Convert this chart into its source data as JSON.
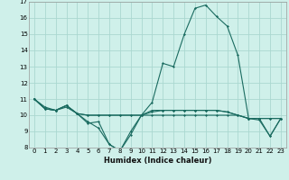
{
  "title": "",
  "xlabel": "Humidex (Indice chaleur)",
  "ylabel": "",
  "bg_color": "#cff0ea",
  "grid_color": "#aad8d0",
  "line_color": "#1a6b60",
  "xlim": [
    -0.5,
    23.5
  ],
  "ylim": [
    8,
    17
  ],
  "xticks": [
    0,
    1,
    2,
    3,
    4,
    5,
    6,
    7,
    8,
    9,
    10,
    11,
    12,
    13,
    14,
    15,
    16,
    17,
    18,
    19,
    20,
    21,
    22,
    23
  ],
  "yticks": [
    8,
    9,
    10,
    11,
    12,
    13,
    14,
    15,
    16,
    17
  ],
  "series": [
    [
      11.0,
      10.5,
      10.3,
      10.5,
      10.1,
      9.6,
      9.2,
      8.2,
      7.8,
      8.8,
      10.0,
      10.8,
      13.2,
      13.0,
      15.0,
      16.6,
      16.8,
      16.1,
      15.5,
      13.7,
      9.8,
      9.7,
      8.7,
      9.8
    ],
    [
      11.0,
      10.4,
      10.3,
      10.6,
      10.1,
      9.5,
      9.6,
      8.2,
      7.8,
      9.0,
      10.0,
      10.3,
      10.3,
      10.3,
      10.3,
      10.3,
      10.3,
      10.3,
      10.2,
      10.0,
      9.8,
      9.8,
      8.7,
      9.8
    ],
    [
      11.0,
      10.4,
      10.3,
      10.6,
      10.1,
      10.0,
      10.0,
      10.0,
      10.0,
      10.0,
      10.0,
      10.2,
      10.3,
      10.3,
      10.3,
      10.3,
      10.3,
      10.3,
      10.2,
      10.0,
      9.8,
      9.8,
      9.8,
      9.8
    ],
    [
      11.0,
      10.4,
      10.3,
      10.6,
      10.1,
      10.0,
      10.0,
      10.0,
      10.0,
      10.0,
      10.0,
      10.0,
      10.0,
      10.0,
      10.0,
      10.0,
      10.0,
      10.0,
      10.0,
      10.0,
      9.8,
      9.8,
      9.8,
      9.8
    ]
  ],
  "xlabel_fontsize": 6.0,
  "tick_fontsize": 5.0
}
